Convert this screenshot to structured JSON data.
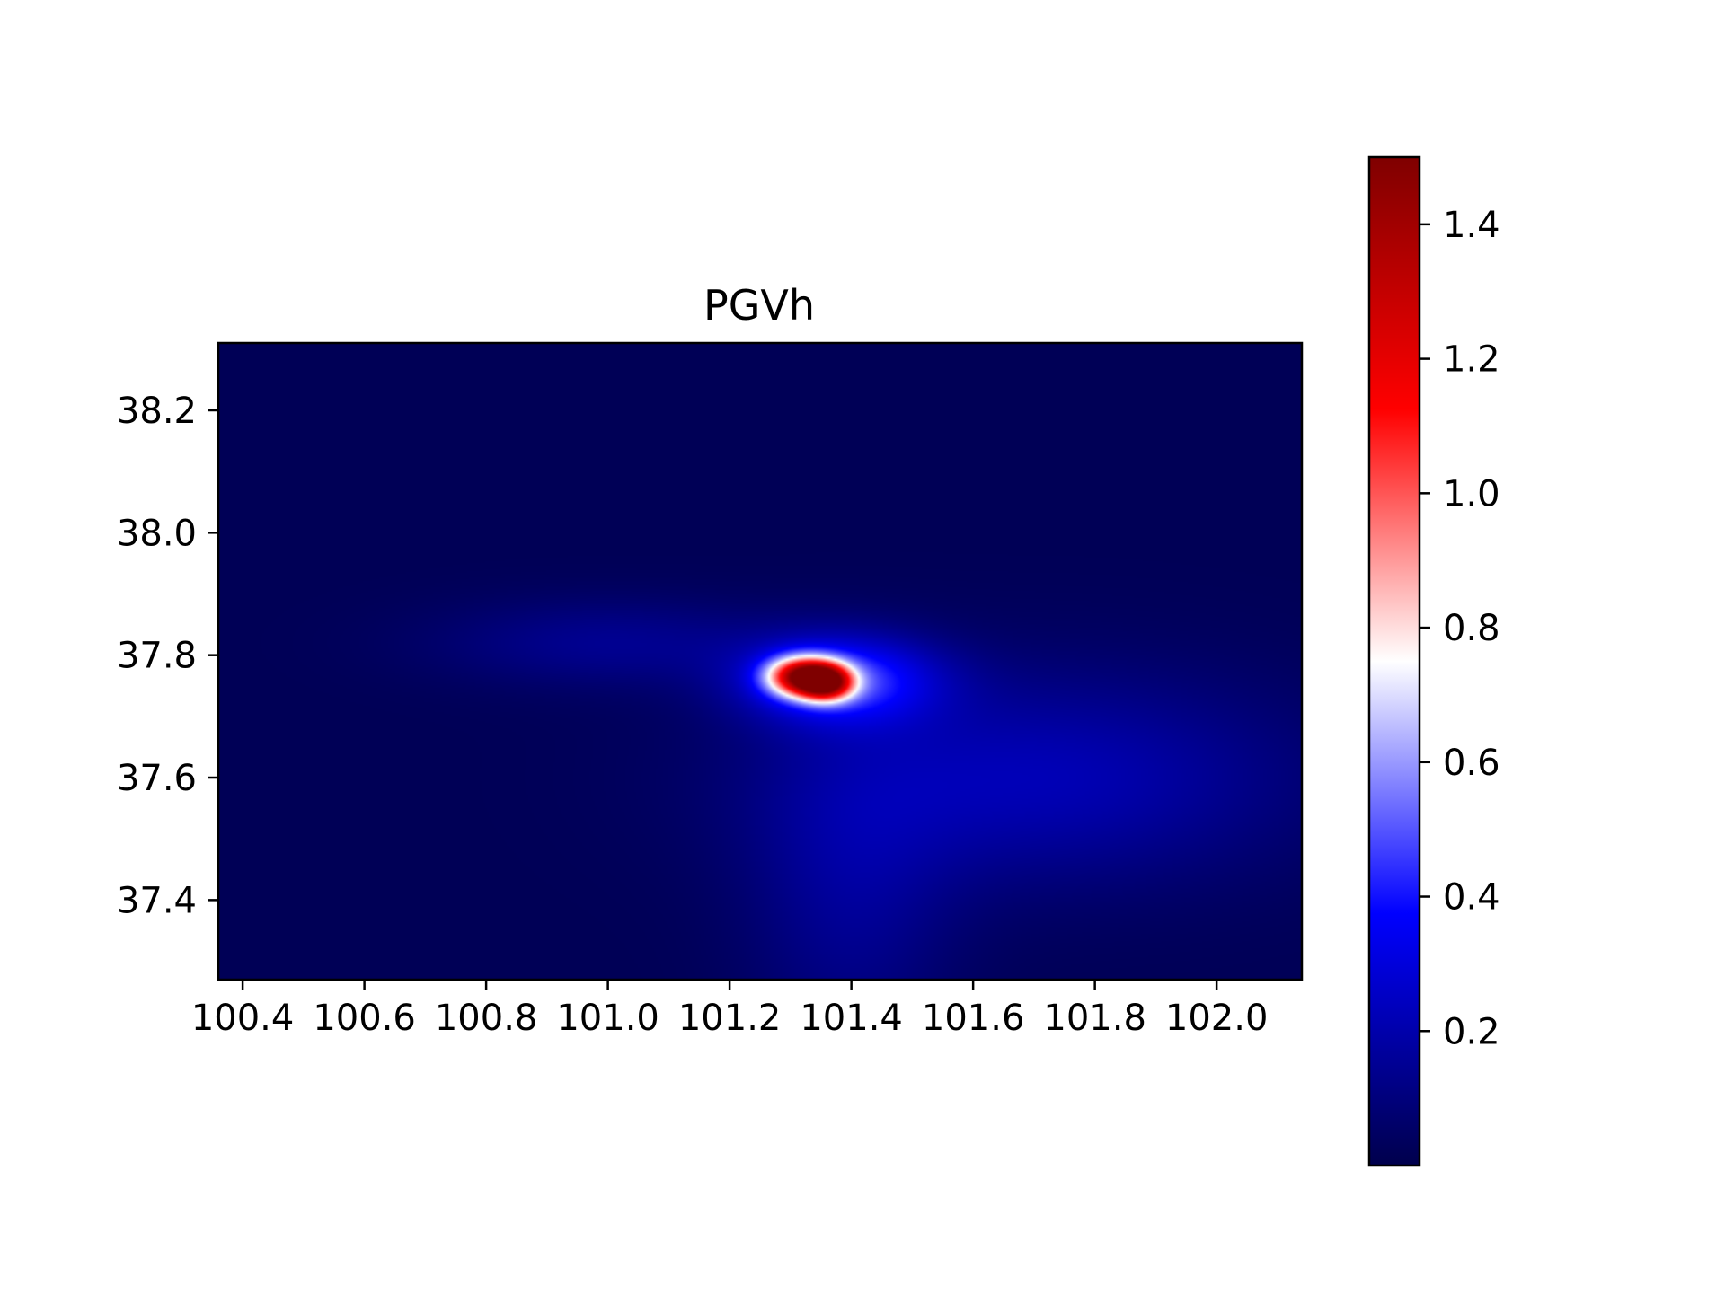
{
  "chart_data": {
    "type": "heatmap",
    "title": "PGVh",
    "xlabel": "",
    "ylabel": "",
    "xlim": [
      100.36,
      102.14
    ],
    "ylim": [
      37.27,
      38.31
    ],
    "x_ticks": [
      100.4,
      100.6,
      100.8,
      101.0,
      101.2,
      101.4,
      101.6,
      101.8,
      102.0
    ],
    "x_tick_labels": [
      "100.4",
      "100.6",
      "100.8",
      "101.0",
      "101.2",
      "101.4",
      "101.6",
      "101.8",
      "102.0"
    ],
    "y_ticks": [
      37.4,
      37.6,
      37.8,
      38.0,
      38.2
    ],
    "y_tick_labels": [
      "37.4",
      "37.6",
      "37.8",
      "38.0",
      "38.2"
    ],
    "colormap": "seismic",
    "colormap_stops": [
      "#00004c",
      "#0000ff",
      "#ffffff",
      "#ff0000",
      "#7f0000"
    ],
    "colorbar": {
      "range": [
        0.0,
        1.5
      ],
      "ticks": [
        0.2,
        0.4,
        0.6,
        0.8,
        1.0,
        1.2,
        1.4
      ],
      "tick_labels": [
        "0.2",
        "0.4",
        "0.6",
        "0.8",
        "1.0",
        "1.2",
        "1.4"
      ],
      "placement": "right"
    },
    "features": [
      {
        "type": "peak",
        "lon": 101.32,
        "lat": 37.765,
        "value": 1.1,
        "sx": 0.04,
        "sy": 0.022
      },
      {
        "type": "peak",
        "lon": 101.36,
        "lat": 37.755,
        "value": 0.9,
        "sx": 0.03,
        "sy": 0.02
      },
      {
        "type": "halo",
        "lon": 101.38,
        "lat": 37.76,
        "value": 0.42,
        "sx": 0.11,
        "sy": 0.05
      },
      {
        "type": "lobe",
        "lon": 101.7,
        "lat": 37.6,
        "value": 0.2,
        "sx": 0.3,
        "sy": 0.12
      },
      {
        "type": "lobe",
        "lon": 101.0,
        "lat": 37.82,
        "value": 0.12,
        "sx": 0.2,
        "sy": 0.05
      },
      {
        "type": "lobe",
        "lon": 101.4,
        "lat": 37.4,
        "value": 0.12,
        "sx": 0.12,
        "sy": 0.18
      }
    ],
    "background_value": 0.02
  }
}
